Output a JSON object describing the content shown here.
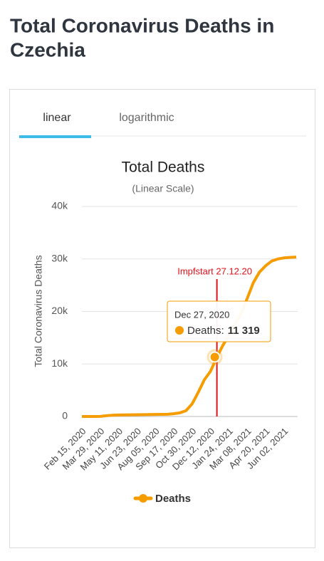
{
  "page": {
    "heading": [
      "Total Coronavirus Deaths in",
      "Czechia"
    ],
    "tabs": [
      "linear",
      "logarithmic"
    ]
  },
  "chart_data": {
    "type": "line",
    "title": "Total Deaths",
    "subtitle": "(Linear Scale)",
    "y_label": "Total Coronavirus Deaths",
    "categories": [
      "Feb 15, 2020",
      null,
      null,
      "Mar 29, 2020",
      null,
      null,
      "May 11, 2020",
      null,
      null,
      "Jun 23, 2020",
      null,
      null,
      "Aug 05, 2020",
      null,
      null,
      "Sep 17, 2020",
      null,
      null,
      "Oct 30, 2020",
      null,
      null,
      "Dec 12, 2020",
      null,
      null,
      "Jan 24, 2021",
      null,
      null,
      "Mar 08, 2021",
      null,
      null,
      "Apr 20, 2021",
      null,
      null,
      "Jun 02, 2021",
      null,
      null
    ],
    "series": [
      {
        "name": "Deaths",
        "color": "#f59c00",
        "values": [
          0,
          0,
          0,
          20,
          150,
          230,
          280,
          310,
          325,
          340,
          350,
          365,
          390,
          410,
          430,
          530,
          700,
          1100,
          2400,
          4600,
          7000,
          8600,
          11200,
          13500,
          15500,
          17500,
          19600,
          22500,
          25500,
          27500,
          28700,
          29600,
          30000,
          30200,
          30300,
          30350
        ]
      }
    ],
    "ylim": [
      0,
      40000
    ],
    "yticks": [
      0,
      {
        "value": 10000,
        "label": "10k"
      },
      {
        "value": 20000,
        "label": "20k"
      },
      {
        "value": 30000,
        "label": "30k"
      },
      {
        "value": 40000,
        "label": "40k"
      }
    ],
    "grid": true,
    "annotation": {
      "text": "Impfstart 27.12.20",
      "color": "#e0101a"
    },
    "tooltip": {
      "date": "Dec 27, 2020",
      "label": "Deaths:",
      "value": 11319,
      "value_label": "11 319"
    },
    "legend": "bottom"
  }
}
